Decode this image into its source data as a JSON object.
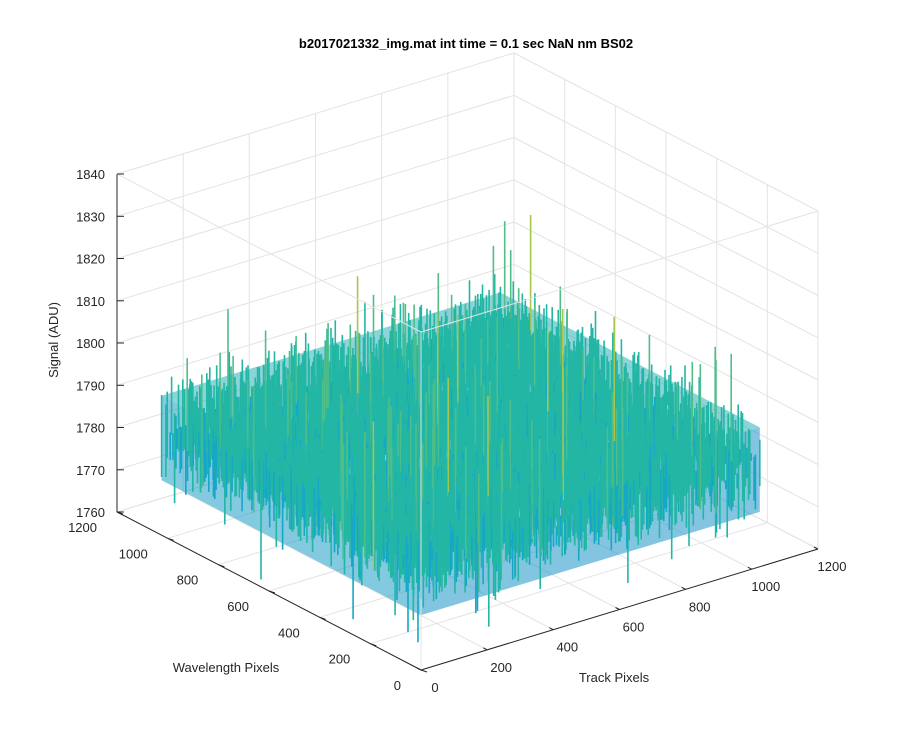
{
  "figure": {
    "title": "b2017021332_img.mat int time = 0.1 sec  NaN nm BS02"
  },
  "chart_data": {
    "type": "surface3d",
    "title": "b2017021332_img.mat int time = 0.1 sec  NaN nm BS02",
    "xlabel": "Track Pixels",
    "ylabel": "Wavelength Pixels",
    "zlabel": "Signal (ADU)",
    "xlim": [
      0,
      1200
    ],
    "ylim": [
      0,
      1200
    ],
    "zlim": [
      1760,
      1840
    ],
    "xticks": [
      "0",
      "200",
      "400",
      "600",
      "800",
      "1000",
      "1200"
    ],
    "yticks": [
      "0",
      "200",
      "400",
      "600",
      "800",
      "1000",
      "1200"
    ],
    "zticks": [
      "1760",
      "1770",
      "1780",
      "1790",
      "1800",
      "1810",
      "1820",
      "1830",
      "1840"
    ],
    "data_extent": {
      "x": [
        0,
        1024
      ],
      "y": [
        0,
        1024
      ]
    },
    "signal_level": {
      "mean": 1785,
      "noise_min": 1765,
      "noise_max": 1825
    },
    "grid": true,
    "colormap": [
      "#2f8fce",
      "#16a6c7",
      "#23b6a5",
      "#4fbe89",
      "#a8c64c"
    ]
  }
}
